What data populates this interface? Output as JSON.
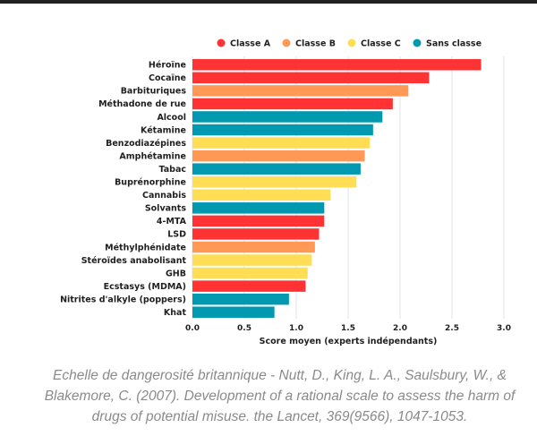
{
  "caption": "Echelle de dangerosité britannique - Nutt, D., King, L. A., Saulsbury, W., & Blakemore, C. (2007). Development of a rational scale to assess the harm of drugs of potential misuse. the Lancet, 369(9566), 1047-1053.",
  "chart_data": {
    "type": "bar",
    "orientation": "horizontal",
    "title": "",
    "xlabel": "Score moyen (experts indépendants)",
    "ylabel": "",
    "xlim": [
      0,
      3
    ],
    "xticks": [
      "0.0",
      "0.5",
      "1.0",
      "1.5",
      "2.0",
      "2.5",
      "3.0"
    ],
    "grid": true,
    "legend_position": "top",
    "legend": [
      {
        "label": "Classe A",
        "color": "#ff3333"
      },
      {
        "label": "Classe B",
        "color": "#ff9955"
      },
      {
        "label": "Classe C",
        "color": "#ffdd55"
      },
      {
        "label": "Sans classe",
        "color": "#0099b0"
      }
    ],
    "categories": [
      "Héroïne",
      "Cocaïne",
      "Barbituriques",
      "Méthadone de rue",
      "Alcool",
      "Kétamine",
      "Benzodiazépines",
      "Amphétamine",
      "Tabac",
      "Buprénorphine",
      "Cannabis",
      "Solvants",
      "4-MTA",
      "LSD",
      "Méthylphénidate",
      "Stéroïdes anabolisant",
      "GHB",
      "Ecstasys (MDMA)",
      "Nitrites d'alkyle (poppers)",
      "Khat"
    ],
    "values": [
      2.78,
      2.28,
      2.08,
      1.93,
      1.83,
      1.74,
      1.71,
      1.66,
      1.62,
      1.58,
      1.33,
      1.27,
      1.27,
      1.22,
      1.18,
      1.15,
      1.11,
      1.09,
      0.93,
      0.79
    ],
    "classes": [
      "Classe A",
      "Classe A",
      "Classe B",
      "Classe A",
      "Sans classe",
      "Sans classe",
      "Classe C",
      "Classe B",
      "Sans classe",
      "Classe C",
      "Classe C",
      "Sans classe",
      "Classe A",
      "Classe A",
      "Classe B",
      "Classe C",
      "Classe C",
      "Classe A",
      "Sans classe",
      "Sans classe"
    ]
  }
}
